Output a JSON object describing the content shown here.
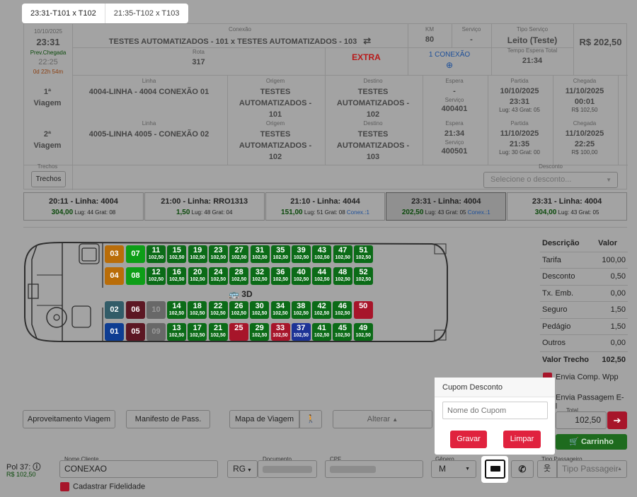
{
  "tabs": [
    {
      "label": "23:31-T101 x T102"
    },
    {
      "label": "21:35-T102 x T103"
    }
  ],
  "header": {
    "date": "10/10/2025",
    "time": "23:31",
    "prev_chegada_label": "Prev.Chegada",
    "prev_chegada_time": "22:25",
    "countdown": "0d 22h 54m",
    "conexao_label": "Conexão",
    "conexao_value": "TESTES AUTOMATIZADOS - 101 x TESTES AUTOMATIZADOS - 103",
    "km_label": "KM",
    "km_value": "80",
    "servico_label": "Serviço",
    "servico_value": "-",
    "tipo_servico_label": "Tipo Serviço",
    "tipo_servico_value": "Leito (Teste)",
    "price": "R$ 202,50",
    "rota_label": "Rota",
    "rota_value": "317",
    "extra": "EXTRA",
    "conexao_count": "1 CONEXÃO",
    "tempo_espera_label": "Tempo Espera Total",
    "tempo_espera_value": "21:34"
  },
  "viagens": [
    {
      "label1": "1ª",
      "label2": "Viagem",
      "linha_label": "Linha",
      "linha": "4004-LINHA - 4004 CONEXÃO 01",
      "origem_label": "Origem",
      "origem": [
        "TESTES",
        "AUTOMATIZADOS -",
        "101"
      ],
      "destino_label": "Destino",
      "destino": [
        "TESTES",
        "AUTOMATIZADOS -",
        "102"
      ],
      "espera_label": "Espera",
      "espera": "-",
      "servico_label": "Serviço",
      "servico": "400401",
      "partida_label": "Partida",
      "partida_data": "10/10/2025",
      "partida_hora": "23:31",
      "partida_lug": "Lug: 43 Grat: 05",
      "chegada_label": "Chegada",
      "chegada_data": "11/10/2025",
      "chegada_hora": "00:01",
      "chegada_valor": "R$ 102,50"
    },
    {
      "label1": "2ª",
      "label2": "Viagem",
      "linha_label": "Linha",
      "linha": "4005-LINHA 4005 - CONEXÃO 02",
      "origem_label": "Origem",
      "origem": [
        "TESTES",
        "AUTOMATIZADOS -",
        "102"
      ],
      "destino_label": "Destino",
      "destino": [
        "TESTES",
        "AUTOMATIZADOS -",
        "103"
      ],
      "espera_label": "Espera",
      "espera": "21:34",
      "servico_label": "Serviço",
      "servico": "400501",
      "partida_label": "Partida",
      "partida_data": "11/10/2025",
      "partida_hora": "21:35",
      "partida_lug": "Lug: 30 Grat: 00",
      "chegada_label": "Chegada",
      "chegada_data": "11/10/2025",
      "chegada_hora": "22:25",
      "chegada_valor": "R$ 100,00"
    }
  ],
  "trechos": {
    "label": "Trechos",
    "button": "Trechos"
  },
  "desconto": {
    "label": "Desconto",
    "placeholder": "Selecione o desconto..."
  },
  "trips": [
    {
      "title": "20:11 - Linha: 4004",
      "price": "304,00",
      "info": " Lug: 44 Grat: 08",
      "conex": ""
    },
    {
      "title": "21:00 - Linha: RRO1313",
      "price": "1,50",
      "info": " Lug: 48 Grat: 04",
      "conex": ""
    },
    {
      "title": "21:10 - Linha: 4044",
      "price": "151,00",
      "info": " Lug: 51 Grat: 08",
      "conex": "Conex.:1"
    },
    {
      "title": "23:31 - Linha: 4004",
      "price": "202,50",
      "info": " Lug: 43 Grat: 05",
      "conex": "Conex.:1"
    },
    {
      "title": "23:31 - Linha: 4004",
      "price": "304,00",
      "info": " Lug: 43 Grat: 05",
      "conex": ""
    }
  ],
  "seat_price": "102,50",
  "view_3d": "3D",
  "seats": {
    "row1": [
      "11",
      "15",
      "19",
      "23",
      "27",
      "31",
      "35",
      "39",
      "43",
      "47",
      "51"
    ],
    "row2": [
      "12",
      "16",
      "20",
      "24",
      "28",
      "32",
      "36",
      "40",
      "44",
      "48",
      "52"
    ],
    "row3": [
      "14",
      "18",
      "22",
      "26",
      "30",
      "34",
      "38",
      "42",
      "46",
      "50"
    ],
    "row4": [
      "13",
      "17",
      "21",
      "25",
      "29",
      "33",
      "37",
      "41",
      "45",
      "49"
    ],
    "red": [
      "50",
      "25",
      "33"
    ],
    "blue": [
      "37"
    ],
    "special": [
      "03",
      "07",
      "04",
      "08",
      "02",
      "06",
      "10",
      "01",
      "05",
      "09"
    ]
  },
  "price_table": {
    "head": [
      "Descrição",
      "Valor"
    ],
    "rows": [
      [
        "Tarifa",
        "100,00"
      ],
      [
        "Desconto",
        "0,50"
      ],
      [
        "Tx. Emb.",
        "0,00"
      ],
      [
        "Seguro",
        "1,50"
      ],
      [
        "Pedágio",
        "1,50"
      ],
      [
        "Outros",
        "0,00"
      ]
    ],
    "total": [
      "Valor Trecho",
      "102,50"
    ]
  },
  "envia_wpp": "Envia Comp. Wpp",
  "envia_email": "Envia Passagem E-mail",
  "total_label": "Total",
  "total_value": "102,50",
  "carrinho": "Carrinho",
  "buttons": {
    "aproveitamento": "Aproveitamento Viagem",
    "manifesto": "Manifesto de Pass.",
    "mapa": "Mapa de Viagem",
    "alterar": "Alterar"
  },
  "popup": {
    "title": "Cupom Desconto",
    "placeholder": "Nome do Cupom",
    "gravar": "Gravar",
    "limpar": "Limpar"
  },
  "passenger": {
    "pol": "Pol 37:",
    "pol_price": "R$ 102,50",
    "nome_label": "Nome Cliente",
    "nome_value": "CONEXAO",
    "doc_type": "RG",
    "documento_label": "Documento",
    "cpf_label": "CPF",
    "genero_label": "Gênero",
    "genero_value": "M",
    "tipo_label": "Tipo Passageiro",
    "tipo_value": "Tipo Passageir",
    "fidelidade": "Cadastrar Fidelidade"
  }
}
